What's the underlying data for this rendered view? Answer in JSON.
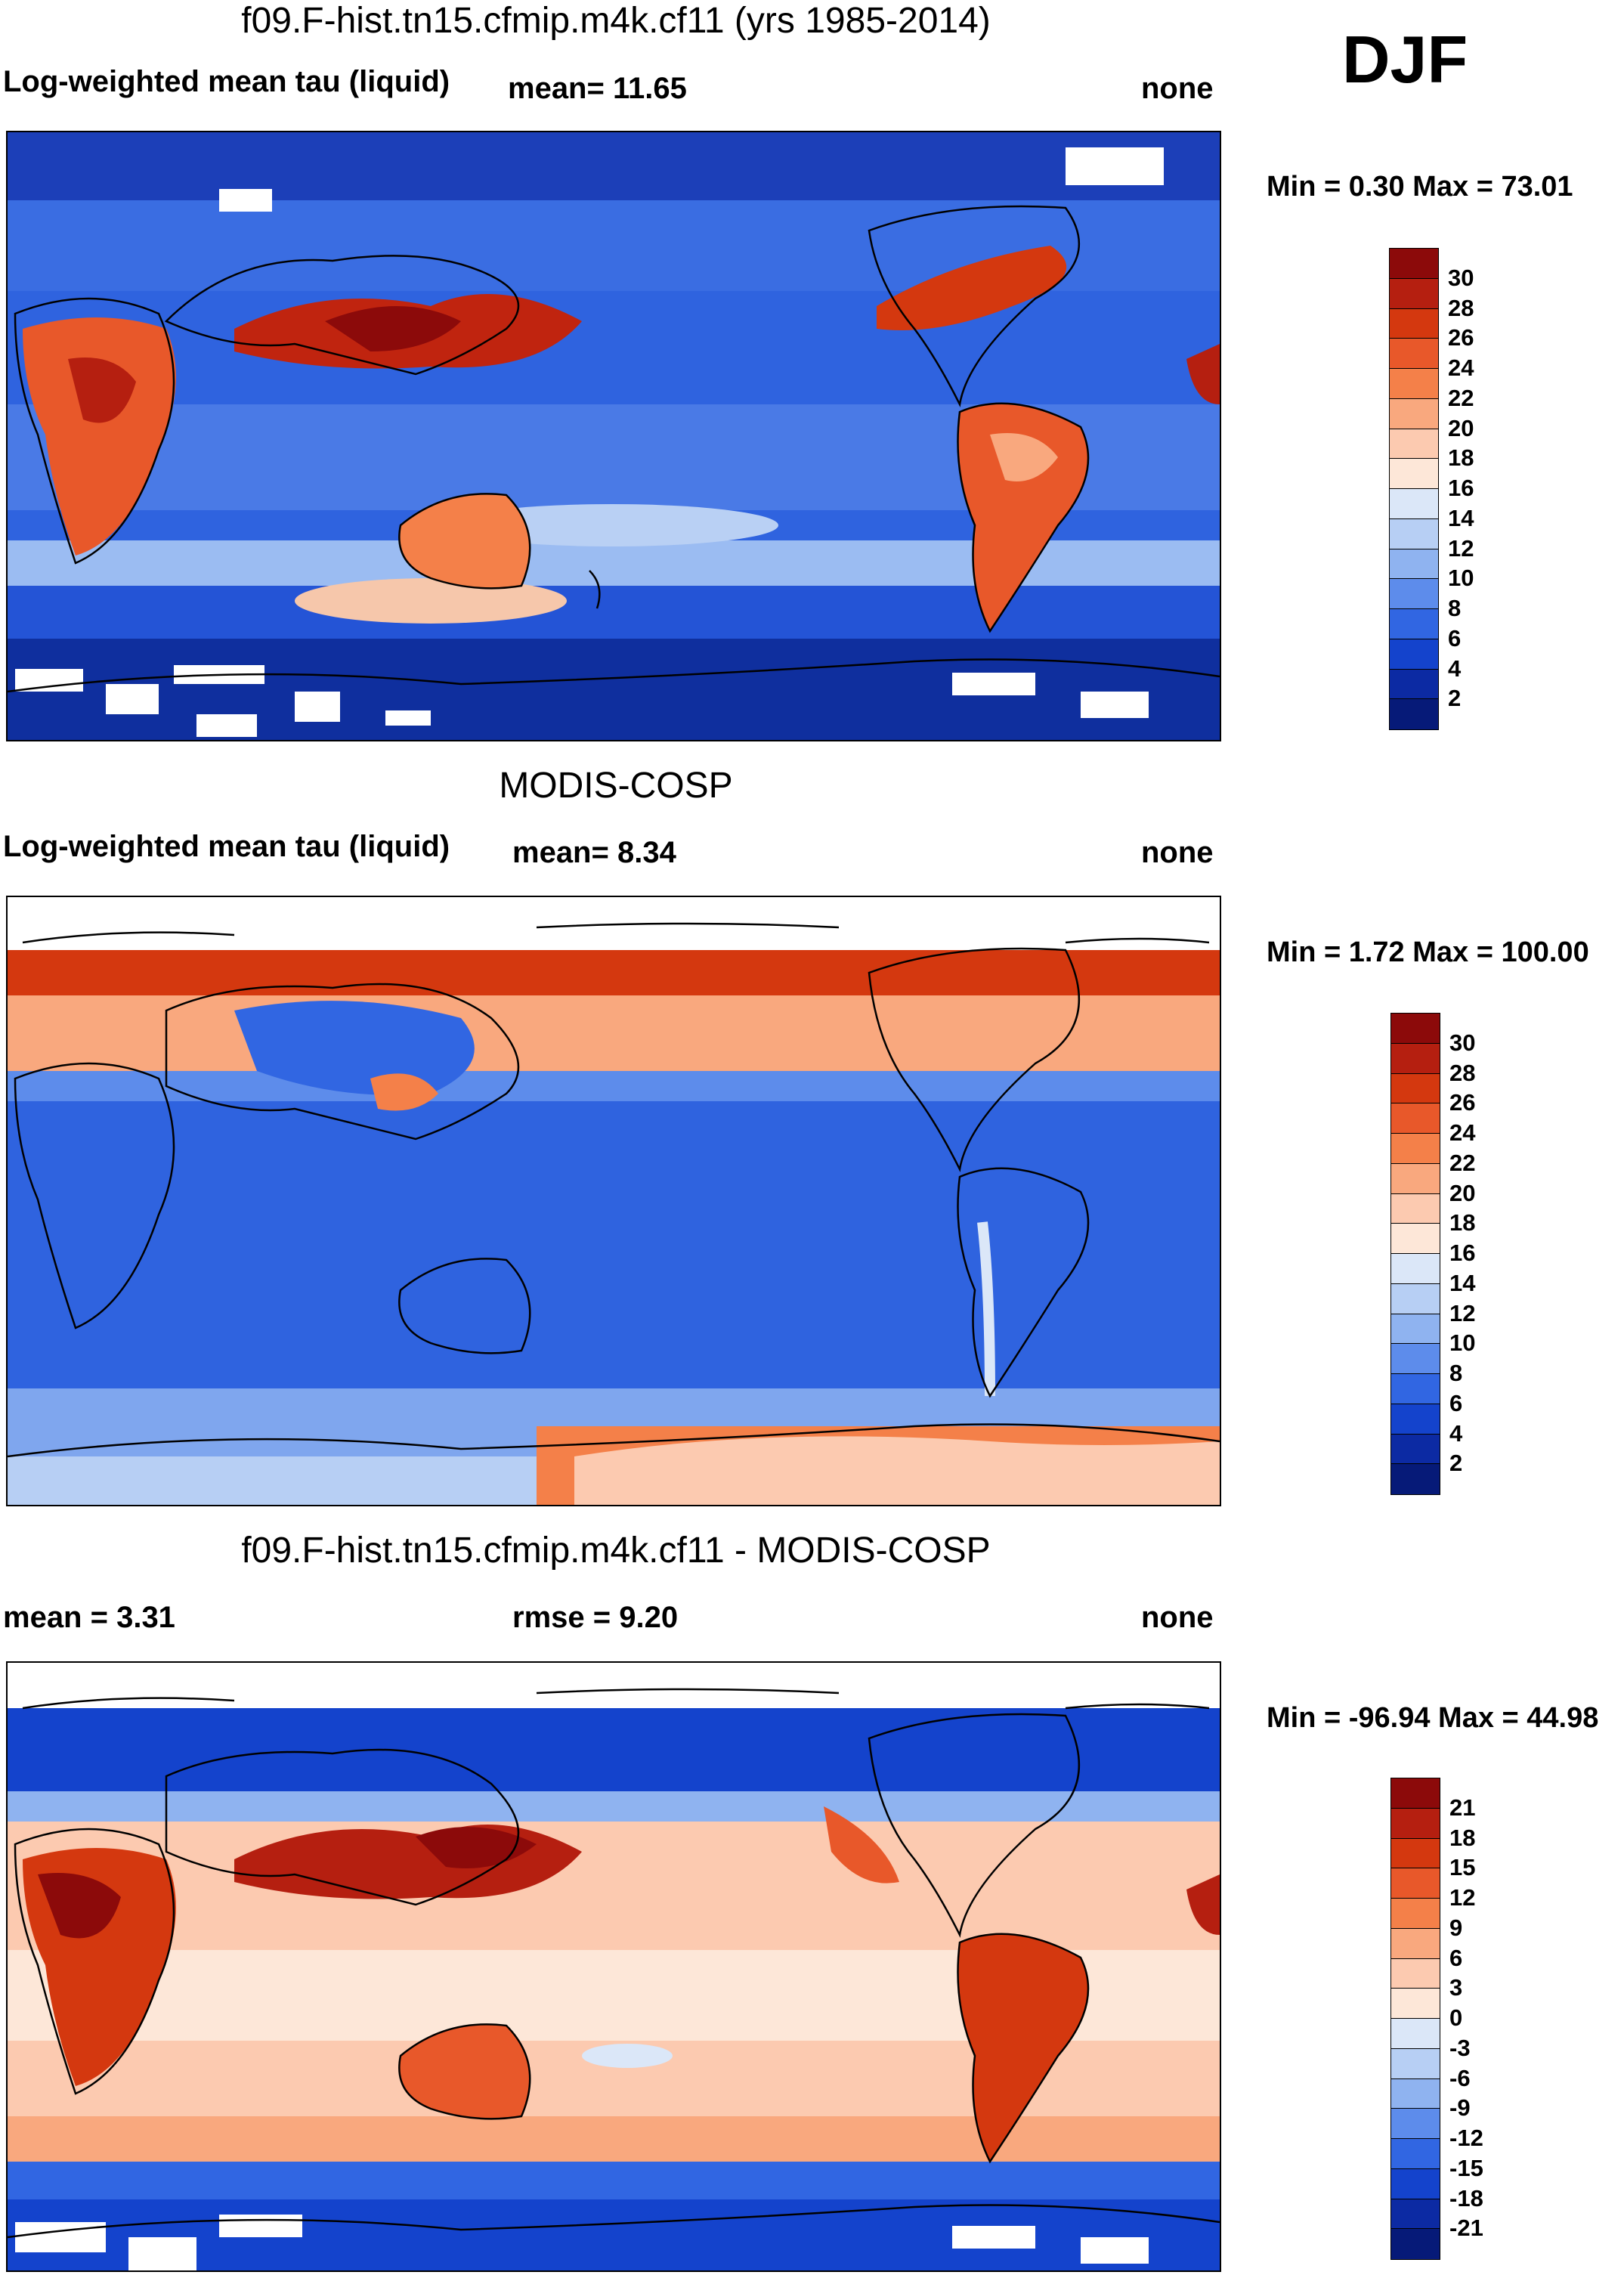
{
  "season": "DJF",
  "panels": [
    {
      "id": "model",
      "title": "f09.F-hist.tn15.cfmip.m4k.cf11 (yrs 1985-2014)",
      "left_label": "Log-weighted mean tau (liquid)",
      "mid_label": "mean=  11.65",
      "right_label": "none",
      "minmax": "Min =   0.30 Max =  73.01",
      "colorbar": {
        "ticks": [
          "30",
          "28",
          "26",
          "24",
          "22",
          "20",
          "18",
          "16",
          "14",
          "12",
          "10",
          "8",
          "6",
          "4",
          "2"
        ],
        "colors": [
          "#8c0a0a",
          "#b51f10",
          "#d4380f",
          "#e8582a",
          "#f48049",
          "#f9a87e",
          "#fccab0",
          "#fde7d8",
          "#dbe7f8",
          "#b7cff4",
          "#8fb3f0",
          "#5d8ceb",
          "#3166e2",
          "#1443cc",
          "#0c2aa3",
          "#061a78"
        ]
      }
    },
    {
      "id": "obs",
      "title": "MODIS-COSP",
      "left_label": "Log-weighted mean tau (liquid)",
      "mid_label": "mean=   8.34",
      "right_label": "none",
      "minmax": "Min =   1.72 Max = 100.00",
      "colorbar": {
        "ticks": [
          "30",
          "28",
          "26",
          "24",
          "22",
          "20",
          "18",
          "16",
          "14",
          "12",
          "10",
          "8",
          "6",
          "4",
          "2"
        ],
        "colors": [
          "#8c0a0a",
          "#b51f10",
          "#d4380f",
          "#e8582a",
          "#f48049",
          "#f9a87e",
          "#fccab0",
          "#fde7d8",
          "#dbe7f8",
          "#b7cff4",
          "#8fb3f0",
          "#5d8ceb",
          "#3166e2",
          "#1443cc",
          "#0c2aa3",
          "#061a78"
        ]
      }
    },
    {
      "id": "diff",
      "title": "f09.F-hist.tn15.cfmip.m4k.cf11 - MODIS-COSP",
      "left_label": "mean =   3.31",
      "mid_label": "rmse =   9.20",
      "right_label": "none",
      "minmax": "Min = -96.94 Max =  44.98",
      "colorbar": {
        "ticks": [
          "21",
          "18",
          "15",
          "12",
          "9",
          "6",
          "3",
          "0",
          "-3",
          "-6",
          "-9",
          "-12",
          "-15",
          "-18",
          "-21"
        ],
        "colors": [
          "#8c0a0a",
          "#b51f10",
          "#d4380f",
          "#e8582a",
          "#f48049",
          "#f9a87e",
          "#fccab0",
          "#fde7d8",
          "#dbe7f8",
          "#b7cff4",
          "#8fb3f0",
          "#5d8ceb",
          "#3166e2",
          "#1443cc",
          "#0c2aa3",
          "#061a78"
        ]
      }
    }
  ]
}
